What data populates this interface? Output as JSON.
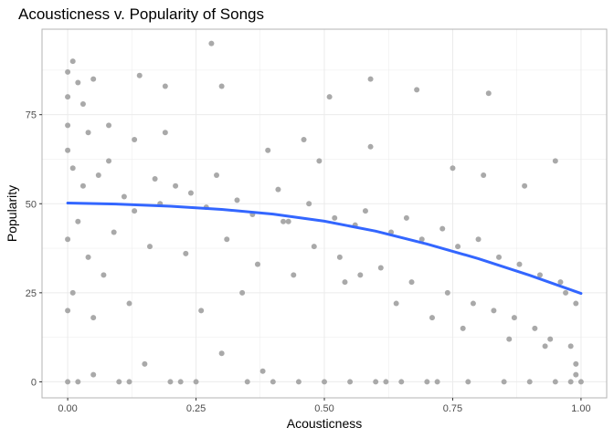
{
  "chart_data": {
    "type": "scatter",
    "title": "Acousticness v. Popularity of Songs",
    "xlabel": "Acousticness",
    "ylabel": "Popularity",
    "xlim": [
      -0.05,
      1.05
    ],
    "ylim": [
      -4.5,
      99
    ],
    "x_ticks": [
      0.0,
      0.25,
      0.5,
      0.75,
      1.0
    ],
    "x_tick_labels": [
      "0.00",
      "0.25",
      "0.50",
      "0.75",
      "1.00"
    ],
    "y_ticks": [
      0,
      25,
      50,
      75
    ],
    "y_tick_labels": [
      "0",
      "25",
      "50",
      "75"
    ],
    "grid": true,
    "legend": "none",
    "colors": {
      "points": "#a9a9a9",
      "trend": "#3366ff",
      "panel_border": "#b3b3b3",
      "grid": "#ebebeb"
    },
    "series": [
      {
        "kind": "points",
        "x": [
          0.0,
          0.0,
          0.01,
          0.0,
          0.02,
          0.03,
          0.05,
          0.28,
          0.51,
          0.59,
          0.68,
          0.82,
          0.14,
          0.19,
          0.3,
          0.0,
          0.02,
          0.05,
          0.1,
          0.12,
          0.15,
          0.2,
          0.22,
          0.25,
          0.3,
          0.35,
          0.38,
          0.4,
          0.45,
          0.5,
          0.55,
          0.6,
          0.62,
          0.65,
          0.7,
          0.72,
          0.78,
          0.85,
          0.9,
          0.95,
          0.98,
          0.99,
          1.0,
          0.0,
          0.01,
          0.03,
          0.06,
          0.08,
          0.11,
          0.13,
          0.17,
          0.18,
          0.21,
          0.24,
          0.27,
          0.29,
          0.33,
          0.36,
          0.41,
          0.43,
          0.47,
          0.52,
          0.56,
          0.58,
          0.63,
          0.66,
          0.69,
          0.73,
          0.76,
          0.8,
          0.84,
          0.88,
          0.92,
          0.96,
          0.97,
          0.99,
          0.0,
          0.02,
          0.04,
          0.07,
          0.09,
          0.16,
          0.23,
          0.31,
          0.37,
          0.42,
          0.48,
          0.53,
          0.57,
          0.61,
          0.67,
          0.74,
          0.79,
          0.83,
          0.87,
          0.91,
          0.94,
          0.98,
          0.0,
          0.01,
          0.05,
          0.12,
          0.26,
          0.34,
          0.44,
          0.54,
          0.64,
          0.71,
          0.77,
          0.86,
          0.93,
          0.99,
          0.04,
          0.08,
          0.13,
          0.19,
          0.39,
          0.46,
          0.49,
          0.59,
          0.75,
          0.81,
          0.89,
          0.95
        ],
        "y": [
          87,
          80,
          90,
          72,
          84,
          78,
          85,
          95,
          80,
          85,
          82,
          81,
          86,
          83,
          83,
          0,
          0,
          2,
          0,
          0,
          5,
          0,
          0,
          0,
          8,
          0,
          3,
          0,
          0,
          0,
          0,
          0,
          0,
          0,
          0,
          0,
          0,
          0,
          0,
          0,
          0,
          2,
          0,
          65,
          60,
          55,
          58,
          62,
          52,
          48,
          57,
          50,
          55,
          53,
          49,
          58,
          51,
          47,
          54,
          45,
          50,
          46,
          44,
          48,
          42,
          46,
          40,
          43,
          38,
          40,
          35,
          33,
          30,
          28,
          25,
          22,
          40,
          45,
          35,
          30,
          42,
          38,
          36,
          40,
          33,
          45,
          38,
          35,
          30,
          32,
          28,
          25,
          22,
          20,
          18,
          15,
          12,
          10,
          20,
          25,
          18,
          22,
          20,
          25,
          30,
          28,
          22,
          18,
          15,
          12,
          10,
          5,
          70,
          72,
          68,
          70,
          65,
          68,
          62,
          66,
          60,
          58,
          55,
          62
        ]
      },
      {
        "kind": "trend",
        "name": "",
        "x": [
          0.0,
          0.1,
          0.2,
          0.3,
          0.4,
          0.5,
          0.6,
          0.7,
          0.8,
          0.9,
          1.0
        ],
        "y": [
          50.2,
          49.9,
          49.3,
          48.4,
          47.1,
          45.1,
          42.3,
          38.7,
          34.6,
          29.9,
          24.8
        ]
      }
    ]
  }
}
